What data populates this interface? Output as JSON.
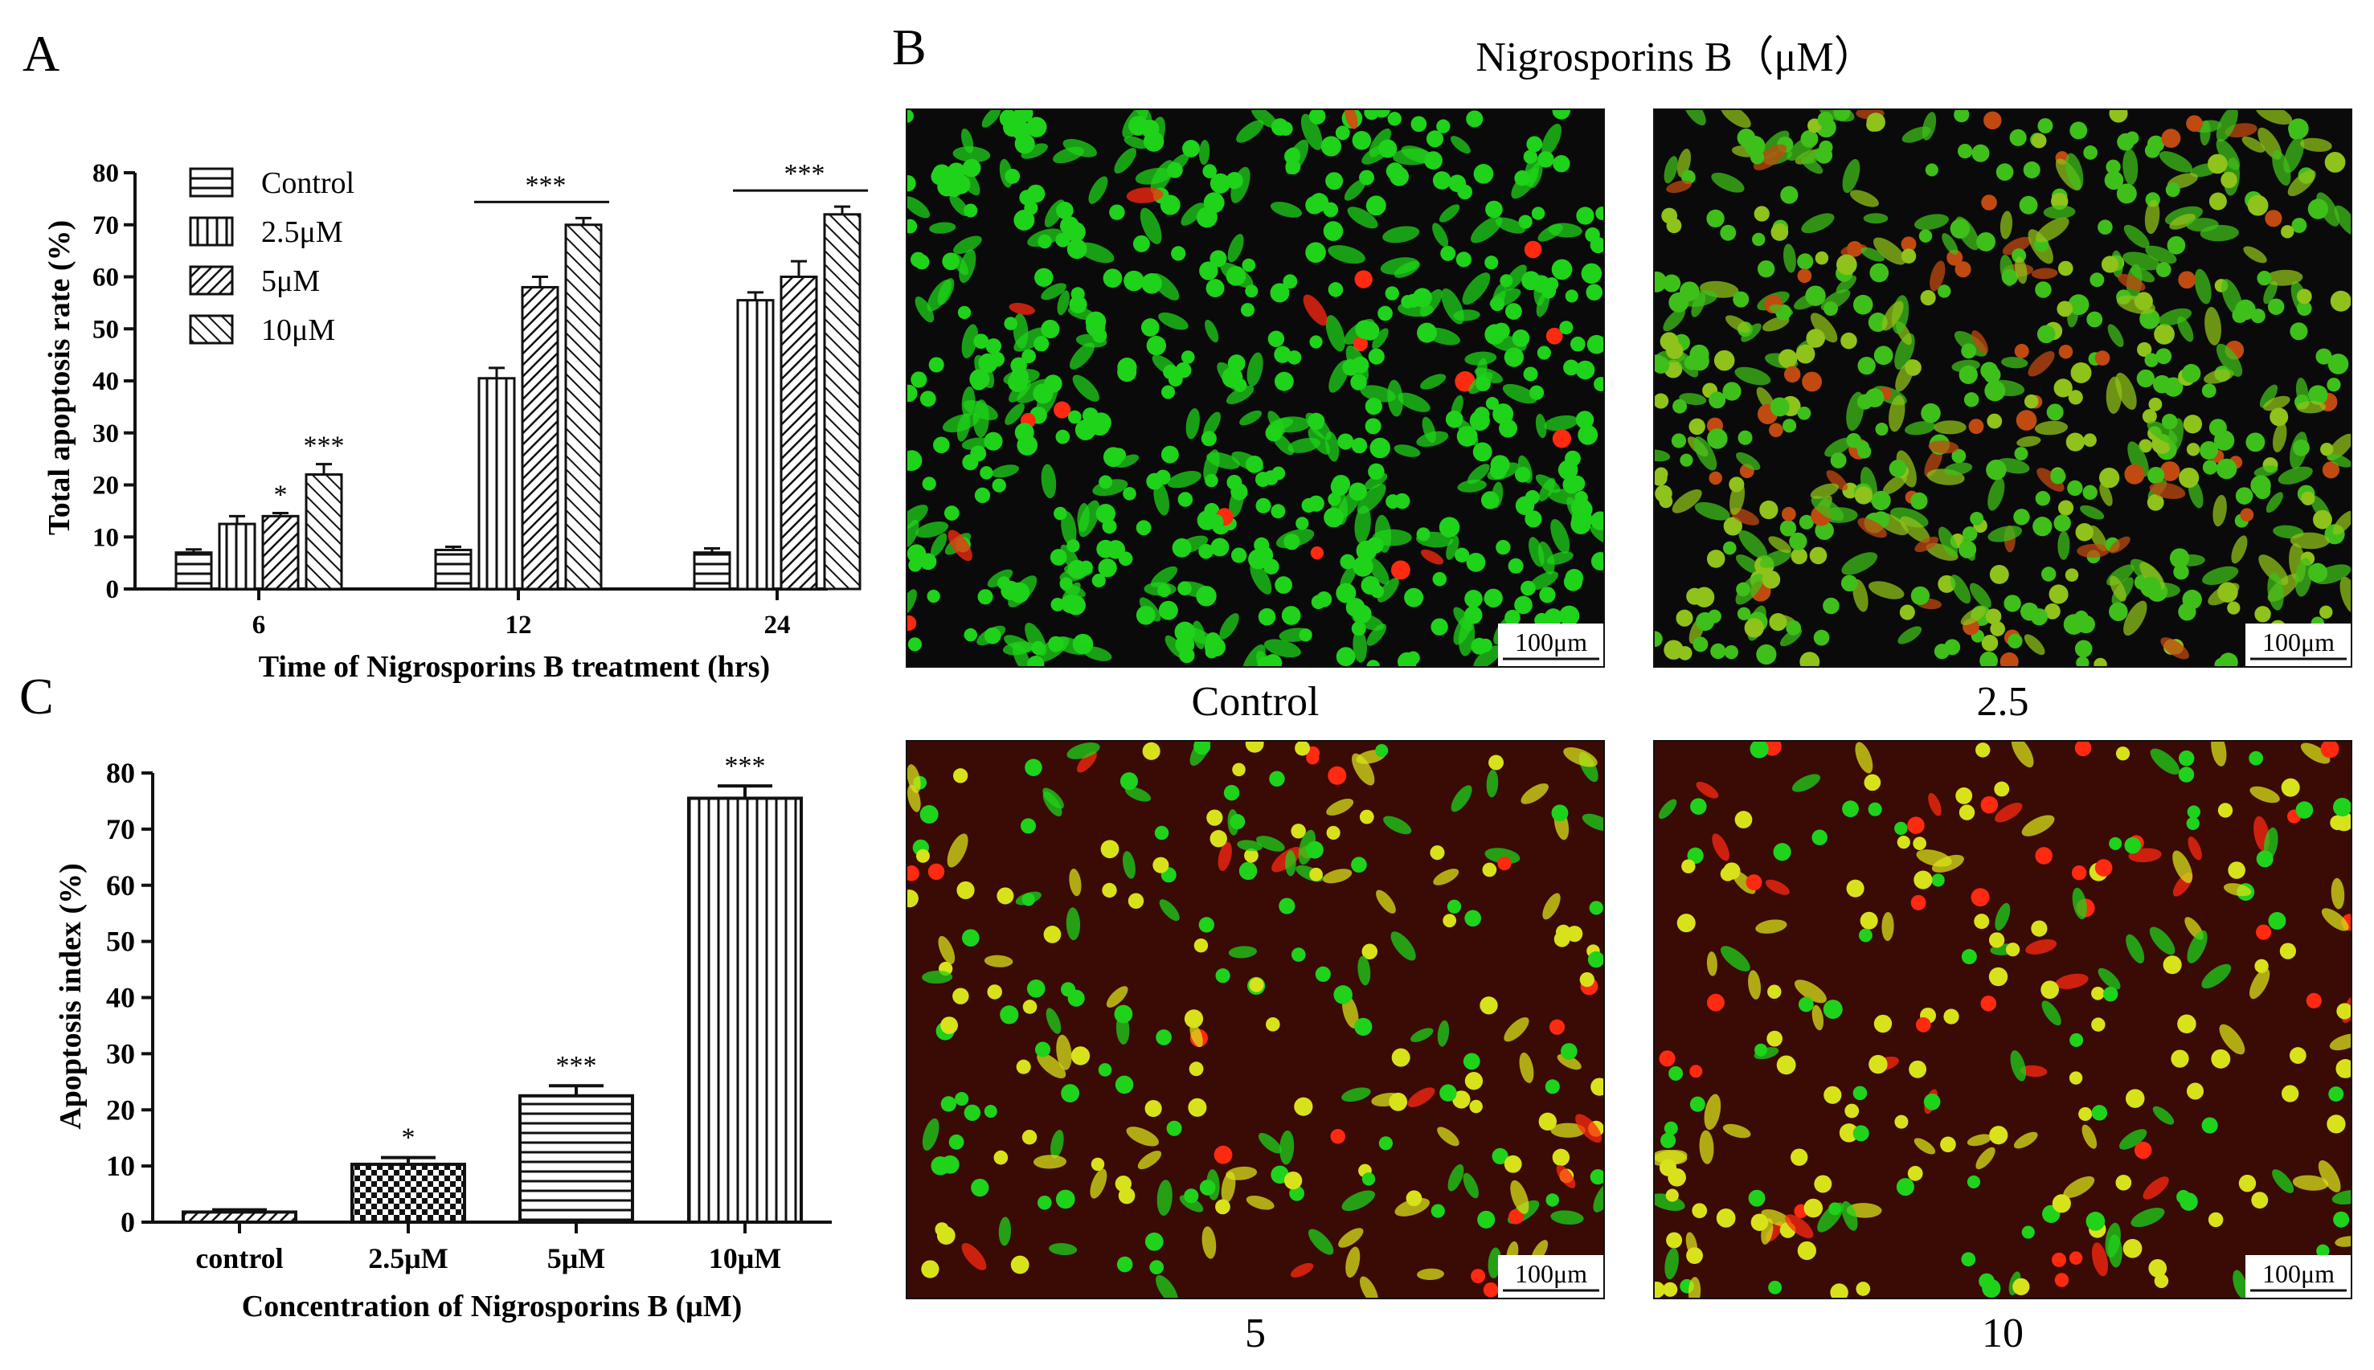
{
  "panels": {
    "A": {
      "letter": "A",
      "chart_data": {
        "type": "bar",
        "ylabel": "Total apoptosis rate (%)",
        "xlabel": "Time of Nigrosporins B treatment (hrs)",
        "ylim": [
          0,
          80
        ],
        "yticks": [
          0,
          10,
          20,
          30,
          40,
          50,
          60,
          70,
          80
        ],
        "categories": [
          "6",
          "12",
          "24"
        ],
        "series": [
          {
            "name": "Control",
            "pattern": "hstripe",
            "values": [
              7,
              7.5,
              7
            ],
            "errors": [
              0.6,
              0.6,
              0.8
            ]
          },
          {
            "name": "2.5μM",
            "pattern": "vstripe",
            "values": [
              12.5,
              40.5,
              55.5
            ],
            "errors": [
              1.5,
              2.0,
              1.5
            ]
          },
          {
            "name": "5μM",
            "pattern": "diag",
            "values": [
              14,
              58,
              60
            ],
            "errors": [
              0.6,
              2.0,
              3.0
            ]
          },
          {
            "name": "10μM",
            "pattern": "diag2",
            "values": [
              22,
              70,
              72
            ],
            "errors": [
              2.0,
              1.3,
              1.5
            ]
          }
        ],
        "annotations": [
          {
            "category": "6",
            "series": "5μM",
            "text": "*"
          },
          {
            "category": "6",
            "series": "10μM",
            "text": "***"
          }
        ],
        "brackets": [
          {
            "category": "12",
            "text": "***"
          },
          {
            "category": "24",
            "text": "***"
          }
        ],
        "legend_position": "top-left"
      }
    },
    "C": {
      "letter": "C",
      "chart_data": {
        "type": "bar",
        "ylabel": "Apoptosis index (%)",
        "xlabel": "Concentration of Nigrosporins B (μM)",
        "ylim": [
          0,
          80
        ],
        "yticks": [
          0,
          10,
          20,
          30,
          40,
          50,
          60,
          70,
          80
        ],
        "categories": [
          "control",
          "2.5μM",
          "5μM",
          "10μM"
        ],
        "patterns": [
          "diag",
          "checker",
          "hstripe",
          "vstripe"
        ],
        "values": [
          1.8,
          10.3,
          22.5,
          75.5
        ],
        "errors": [
          0.4,
          1.2,
          1.8,
          2.2
        ],
        "annotations": [
          "",
          "*",
          "***",
          "***"
        ]
      }
    },
    "B": {
      "letter": "B",
      "title": "Nigrosporins B（μM）",
      "scale_bar": "100μm",
      "images": [
        {
          "caption": "Control"
        },
        {
          "caption": "2.5"
        },
        {
          "caption": "5"
        },
        {
          "caption": "10"
        }
      ]
    }
  },
  "colors": {
    "ink": "#111111",
    "cell_green": "#1fd21a",
    "cell_yellow": "#d8e21a",
    "cell_red": "#ff2a10",
    "bg_dark": "#0a0a0a",
    "bg_red": "#3a0a05"
  }
}
